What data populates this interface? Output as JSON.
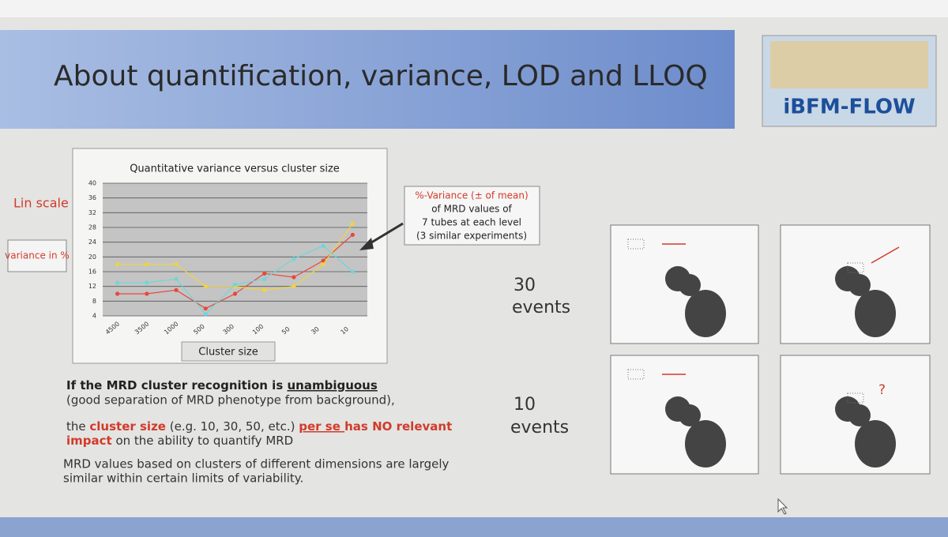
{
  "slide": {
    "title": "About quantification, variance, LOD and LLOQ",
    "logo": "iBFM-FLOW",
    "scale_label": "Lin scale",
    "variance_label": "variance in %",
    "callout": [
      "%-Variance (± of mean)",
      "of MRD values of",
      "7 tubes at each level",
      "(3 similar experiments)"
    ],
    "events_30": [
      "30",
      "events"
    ],
    "events_10": [
      "10",
      "events"
    ],
    "question": "?",
    "para1": [
      "If the MRD cluster recognition is ",
      "unambiguous"
    ],
    "para2": "(good separation of MRD phenotype from background),",
    "para3": [
      "the ",
      "cluster size",
      " (e.g. 10, 30, 50, etc.) ",
      "per se ",
      "has NO relevant"
    ],
    "para4": [
      "impact",
      " on the ability to quantify MRD"
    ],
    "para5": [
      "MRD values based on clusters of different dimensions are largely",
      "similar within certain limits of variability."
    ]
  },
  "chart_data": {
    "type": "line",
    "title": "Quantitative variance versus cluster size",
    "x_label": "Cluster size",
    "categories": [
      "4500",
      "3500",
      "1000",
      "500",
      "300",
      "100",
      "50",
      "30",
      "10"
    ],
    "series": [
      {
        "color": "#e8473c",
        "values": [
          10,
          10,
          11,
          6,
          10,
          15.5,
          14.5,
          19,
          26
        ]
      },
      {
        "color": "#f2d43a",
        "values": [
          18,
          18,
          18,
          12,
          12,
          11,
          12,
          18,
          29
        ]
      },
      {
        "color": "#6fd6d8",
        "values": [
          13,
          13,
          14,
          4.5,
          12.5,
          14,
          19.5,
          23,
          16
        ]
      }
    ],
    "ylim": [
      4,
      40
    ],
    "yticks": [
      4,
      8,
      12,
      16,
      20,
      24,
      28,
      32,
      36,
      40
    ],
    "grid": true
  }
}
